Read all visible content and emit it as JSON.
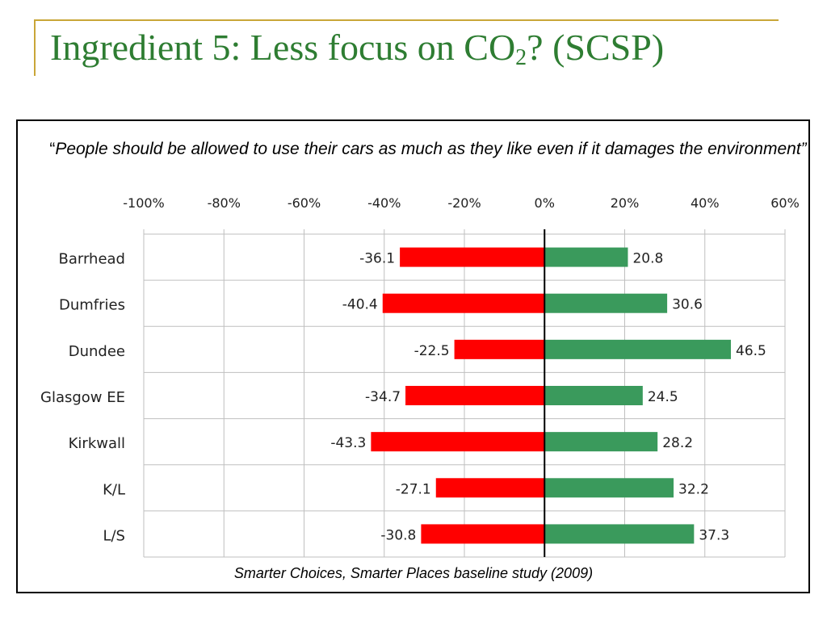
{
  "slide": {
    "title_text": "Ingredient 5: Less focus on CO",
    "title_sub": "2",
    "title_suffix": "? (SCSP)"
  },
  "quote": {
    "open_mark": "“",
    "text": "People should be allowed to use their cars as much as they like even if it damages the environment”"
  },
  "source": "Smarter Choices, Smarter Places baseline study (2009)",
  "colors": {
    "title": "#2e7d32",
    "accent_line": "#c9a638",
    "negative_bar": "#ff0000",
    "positive_bar": "#3a9a5c",
    "grid": "#bfbfbf"
  },
  "chart_data": {
    "type": "bar",
    "orientation": "horizontal",
    "stacked": "diverging",
    "title": "",
    "xlabel": "",
    "ylabel": "",
    "xlim": [
      -100,
      60
    ],
    "x_ticks": [
      -100,
      -80,
      -60,
      -40,
      -20,
      0,
      20,
      40,
      60
    ],
    "x_tick_labels": [
      "-100%",
      "-80%",
      "-60%",
      "-40%",
      "-20%",
      "0%",
      "20%",
      "40%",
      "60%"
    ],
    "x_axis_position": "top",
    "grid": true,
    "legend": "none",
    "categories": [
      "Barrhead",
      "Dumfries",
      "Dundee",
      "Glasgow EE",
      "Kirkwall",
      "K/L",
      "L/S"
    ],
    "series": [
      {
        "color": "#ff0000",
        "values": [
          -36.1,
          -40.4,
          -22.5,
          -34.7,
          -43.3,
          -27.1,
          -30.8
        ],
        "labels": [
          "-36.1",
          "-40.4",
          "-22.5",
          "-34.7",
          "-43.3",
          "-27.1",
          "-30.8"
        ]
      },
      {
        "color": "#3a9a5c",
        "values": [
          20.8,
          30.6,
          46.5,
          24.5,
          28.2,
          32.2,
          37.3
        ],
        "labels": [
          "20.8",
          "30.6",
          "46.5",
          "24.5",
          "28.2",
          "32.2",
          "37.3"
        ]
      }
    ]
  }
}
